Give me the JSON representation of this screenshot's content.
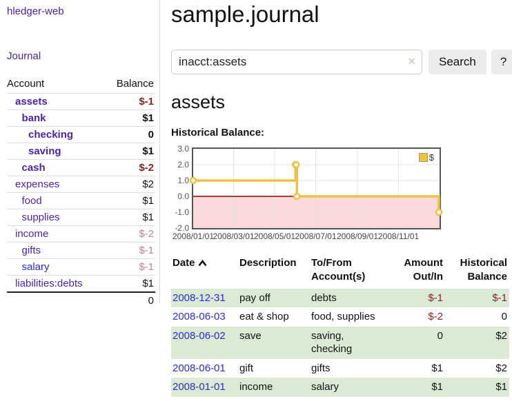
{
  "sidebar": {
    "app_title": "hledger-web",
    "nav": {
      "journal_label": "Journal"
    },
    "accounts_table": {
      "headers": {
        "account": "Account",
        "balance": "Balance"
      },
      "rows": [
        {
          "name": "assets",
          "balance": "$-1",
          "level": 0,
          "bold": true,
          "balance_neg": "strong"
        },
        {
          "name": "bank",
          "balance": "$1",
          "level": 1,
          "bold": true
        },
        {
          "name": "checking",
          "balance": "0",
          "level": 2,
          "bold": true
        },
        {
          "name": "saving",
          "balance": "$1",
          "level": 2,
          "bold": true
        },
        {
          "name": "cash",
          "balance": "$-2",
          "level": 1,
          "bold": true,
          "balance_neg": "strong"
        },
        {
          "name": "expenses",
          "balance": "$2",
          "level": 0
        },
        {
          "name": "food",
          "balance": "$1",
          "level": 1
        },
        {
          "name": "supplies",
          "balance": "$1",
          "level": 1
        },
        {
          "name": "income",
          "balance": "$-2",
          "level": 0,
          "balance_neg": "soft"
        },
        {
          "name": "gifts",
          "balance": "$-1",
          "level": 1,
          "balance_neg": "soft"
        },
        {
          "name": "salary",
          "balance": "$-1",
          "level": 1,
          "balance_neg": "soft",
          "unvisited": true
        },
        {
          "name": "liabilities:debts",
          "balance": "$1",
          "level": 0
        }
      ],
      "total": "0"
    }
  },
  "header": {
    "title": "sample.journal"
  },
  "search": {
    "value": "inacct:assets",
    "placeholder": "",
    "clear_icon": "×",
    "button_label": "Search",
    "help_label": "?"
  },
  "account_page": {
    "title": "assets",
    "chart_label": "Historical Balance:"
  },
  "chart_data": {
    "type": "line",
    "step": true,
    "title": "Historical Balance",
    "series": [
      {
        "name": "$",
        "color": "#edc240",
        "points": [
          [
            "2008-01-01",
            1
          ],
          [
            "2008-06-01",
            2
          ],
          [
            "2008-06-02",
            2
          ],
          [
            "2008-06-03",
            0
          ],
          [
            "2008-12-31",
            -1
          ]
        ]
      }
    ],
    "xlim": [
      "2008-01-01",
      "2009-01-01"
    ],
    "ylim": [
      -2,
      3
    ],
    "y_ticks": [
      3,
      2,
      1,
      0,
      -1,
      -2
    ],
    "y_tick_labels": [
      "3.0",
      "2.0",
      "1.0",
      "0.0",
      "-1.0",
      "-2.0"
    ],
    "x_ticks": [
      "2008-01-01",
      "2008-03-01",
      "2008-05-01",
      "2008-07-01",
      "2008-09-01",
      "2008-11-01"
    ],
    "x_tick_labels": [
      "2008/01/01",
      "2008/03/01",
      "2008/05/01",
      "2008/07/01",
      "2008/09/01",
      "2008/11/01"
    ],
    "legend": {
      "label": "$",
      "position": "top-right"
    },
    "grid": true,
    "negative_region_color": "#f9d9da",
    "zero_line_color": "#8b0000",
    "grid_color": "#e3e3e3"
  },
  "register_table": {
    "headers": {
      "date": "Date",
      "description": "Description",
      "accounts": "To/From\nAccount(s)",
      "amount": "Amount\nOut/In",
      "balance": "Historical\nBalance"
    },
    "rows": [
      {
        "date": "2008-12-31",
        "description": "pay off",
        "accounts": "debts",
        "amount": "$-1",
        "balance": "$-1"
      },
      {
        "date": "2008-06-03",
        "description": "eat & shop",
        "accounts": "food, supplies",
        "amount": "$-2",
        "balance": "0"
      },
      {
        "date": "2008-06-02",
        "description": "save",
        "accounts": "saving,\nchecking",
        "amount": "0",
        "balance": "$2"
      },
      {
        "date": "2008-06-01",
        "description": "gift",
        "accounts": "gifts",
        "amount": "$1",
        "balance": "$2"
      },
      {
        "date": "2008-01-01",
        "description": "income",
        "accounts": "salary",
        "amount": "$1",
        "balance": "$1"
      }
    ]
  },
  "colors": {
    "link_purple": "#4f23a8",
    "link_blue": "#2a2bd9",
    "negative_strong": "#8b1f1f",
    "negative_soft": "#c08484",
    "row_green": "#dbead5",
    "series_yellow": "#edc240"
  }
}
